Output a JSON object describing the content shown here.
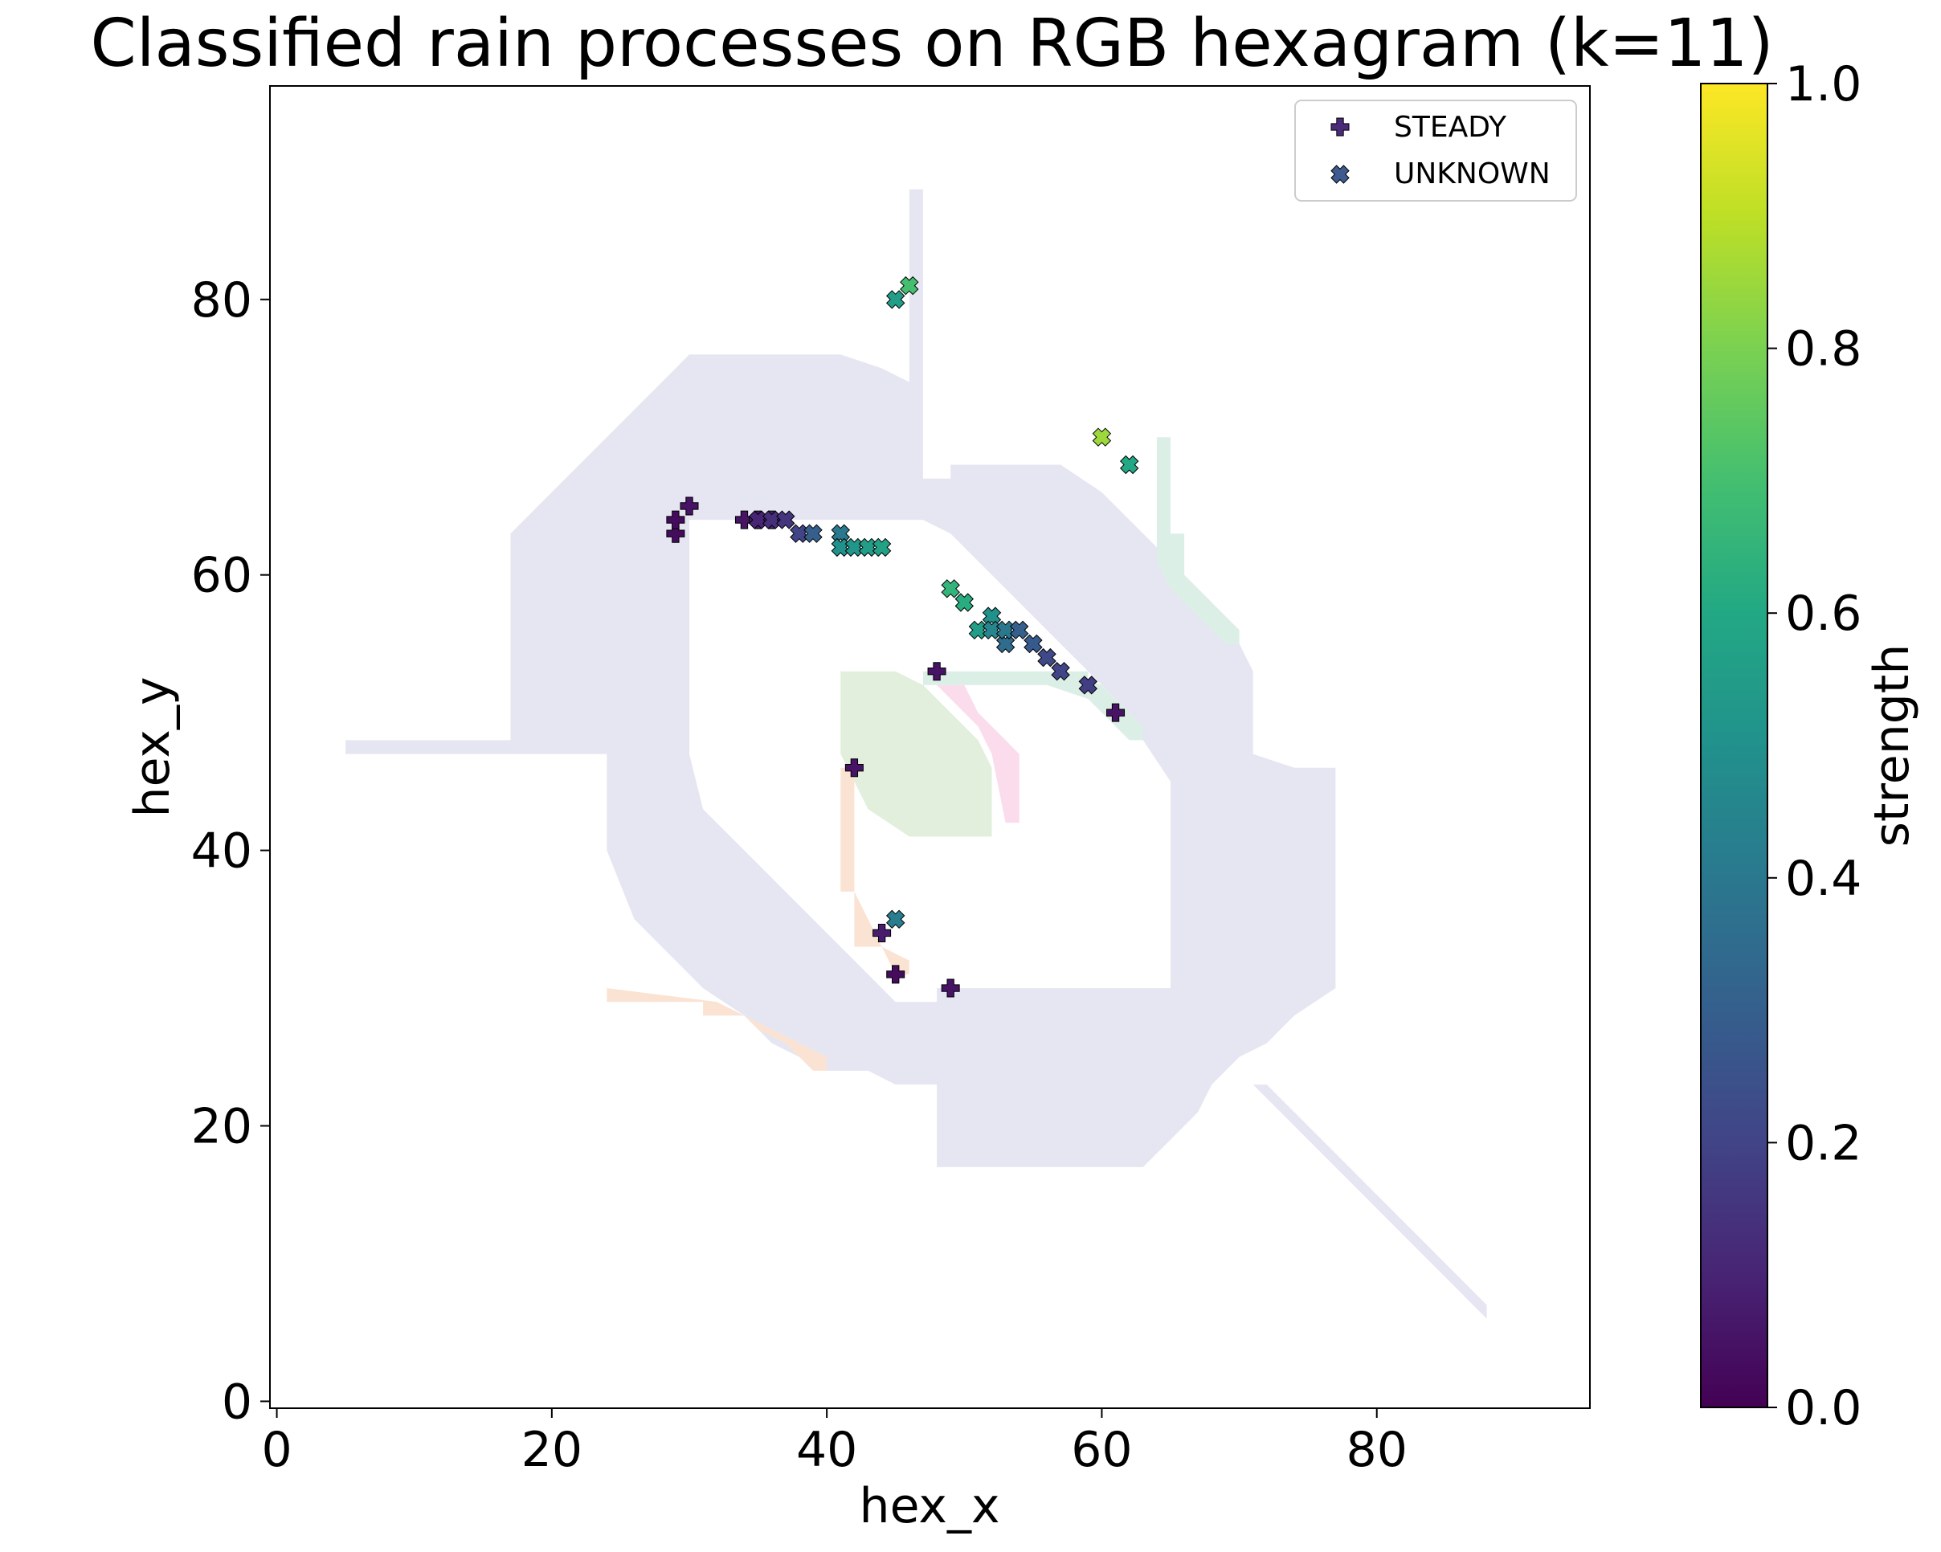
{
  "chart_data": {
    "type": "scatter",
    "title": "Classified rain processes on RGB hexagram (k=11)",
    "xlabel": "hex_x",
    "ylabel": "hex_y",
    "xlim": [
      -0.5,
      95.5
    ],
    "ylim": [
      -0.5,
      95.5
    ],
    "xticks": [
      0,
      20,
      40,
      60,
      80
    ],
    "yticks": [
      0,
      20,
      40,
      60,
      80
    ],
    "grid": false,
    "legend_position": "top-right",
    "colorbar": {
      "label": "strength",
      "range": [
        0,
        1
      ],
      "ticks": [
        "0.0",
        "0.2",
        "0.4",
        "0.6",
        "0.8",
        "1.0"
      ],
      "colormap": "viridis"
    },
    "background_regions": [
      {
        "color": "#e6e6f2",
        "polygons": [
          [
            [
              17,
              47
            ],
            [
              17,
              63
            ],
            [
              20,
              66
            ],
            [
              22,
              68
            ],
            [
              24,
              70
            ],
            [
              26,
              72
            ],
            [
              28,
              74
            ],
            [
              30,
              76
            ],
            [
              41,
              76
            ],
            [
              44,
              75
            ],
            [
              46,
              74
            ],
            [
              46,
              88
            ],
            [
              47,
              88
            ],
            [
              47,
              67
            ],
            [
              49,
              67
            ],
            [
              49,
              68
            ],
            [
              53,
              68
            ],
            [
              55,
              68
            ],
            [
              57,
              68
            ],
            [
              60,
              66
            ],
            [
              62,
              64
            ],
            [
              64,
              62
            ],
            [
              66,
              60
            ],
            [
              68,
              58
            ],
            [
              70,
              55
            ],
            [
              71,
              53
            ],
            [
              71,
              47
            ],
            [
              74,
              46
            ],
            [
              77,
              46
            ],
            [
              77,
              30
            ],
            [
              74,
              28
            ],
            [
              72,
              26
            ],
            [
              70,
              25
            ],
            [
              68,
              23
            ],
            [
              67,
              21
            ],
            [
              65,
              19
            ],
            [
              64,
              18
            ],
            [
              63,
              17
            ],
            [
              48,
              17
            ],
            [
              48,
              23
            ],
            [
              45,
              23
            ],
            [
              43,
              24
            ],
            [
              40,
              24
            ],
            [
              36,
              26
            ],
            [
              34,
              28
            ],
            [
              31,
              30
            ],
            [
              29,
              32
            ],
            [
              26,
              35
            ],
            [
              24,
              40
            ],
            [
              24,
              47
            ]
          ],
          [
            [
              30,
              47
            ],
            [
              30,
              64
            ],
            [
              47,
              64
            ],
            [
              49,
              63
            ],
            [
              51,
              61
            ],
            [
              53,
              59
            ],
            [
              55,
              57
            ],
            [
              57,
              55
            ],
            [
              60,
              52
            ],
            [
              62,
              50
            ],
            [
              63,
              48
            ],
            [
              65,
              45
            ],
            [
              65,
              30
            ],
            [
              48,
              30
            ],
            [
              48,
              29
            ],
            [
              45,
              29
            ],
            [
              44,
              30
            ],
            [
              42,
              32
            ],
            [
              40,
              34
            ],
            [
              37,
              37
            ],
            [
              35,
              39
            ],
            [
              33,
              41
            ],
            [
              31,
              43
            ]
          ]
        ]
      },
      {
        "color": "#e6e6f2",
        "polygons": [
          [
            [
              5,
              47
            ],
            [
              17,
              47
            ],
            [
              17,
              48
            ],
            [
              5,
              48
            ]
          ]
        ]
      },
      {
        "color": "#e6e6f2",
        "polygons": [
          [
            [
              71,
              23
            ],
            [
              88,
              6
            ],
            [
              88,
              7
            ],
            [
              72,
              23
            ]
          ]
        ]
      },
      {
        "color": "#e2efdc",
        "polygons": [
          [
            [
              41,
              53
            ],
            [
              45,
              53
            ],
            [
              47,
              52
            ],
            [
              49,
              50
            ],
            [
              51,
              48
            ],
            [
              52,
              46
            ],
            [
              52,
              41
            ],
            [
              46,
              41
            ],
            [
              43,
              43
            ],
            [
              42,
              45
            ],
            [
              41,
              47
            ]
          ]
        ]
      },
      {
        "color": "#fadcec",
        "polygons": [
          [
            [
              48,
              52
            ],
            [
              50,
              52
            ],
            [
              51,
              50
            ],
            [
              53,
              48
            ],
            [
              54,
              47
            ],
            [
              54,
              42
            ],
            [
              53,
              42
            ],
            [
              52,
              47
            ],
            [
              51,
              49
            ]
          ]
        ]
      },
      {
        "color": "#dcefe6",
        "polygons": [
          [
            [
              47,
              53
            ],
            [
              59,
              53
            ],
            [
              59,
              52
            ],
            [
              47,
              52
            ]
          ]
        ]
      },
      {
        "color": "#dcefe6",
        "polygons": [
          [
            [
              56,
              52
            ],
            [
              59,
              51
            ],
            [
              62,
              48
            ],
            [
              63,
              48
            ],
            [
              63,
              49
            ],
            [
              60,
              52
            ],
            [
              57,
              53
            ]
          ]
        ]
      },
      {
        "color": "#dcefe6",
        "polygons": [
          [
            [
              64,
              70
            ],
            [
              65,
              70
            ],
            [
              65,
              63
            ],
            [
              66,
              63
            ],
            [
              66,
              60
            ],
            [
              68,
              58
            ],
            [
              70,
              56
            ],
            [
              70,
              55
            ],
            [
              69,
              55
            ],
            [
              67,
              57
            ],
            [
              65,
              59
            ],
            [
              64,
              61
            ]
          ]
        ]
      },
      {
        "color": "#fbe3d3",
        "polygons": [
          [
            [
              41,
              46
            ],
            [
              41,
              37
            ],
            [
              42,
              37
            ],
            [
              42,
              33
            ],
            [
              44,
              33
            ],
            [
              45,
              31
            ],
            [
              46,
              31
            ],
            [
              46,
              32
            ],
            [
              44,
              33
            ],
            [
              43,
              35
            ],
            [
              42,
              37
            ],
            [
              42,
              46
            ]
          ]
        ]
      },
      {
        "color": "#fbe3d3",
        "polygons": [
          [
            [
              24,
              29
            ],
            [
              31,
              29
            ],
            [
              31,
              28
            ],
            [
              34,
              28
            ],
            [
              35,
              27
            ],
            [
              37,
              26
            ],
            [
              39,
              24
            ],
            [
              40,
              24
            ],
            [
              40,
              25
            ],
            [
              38,
              26
            ],
            [
              36,
              27
            ],
            [
              34,
              28
            ],
            [
              32,
              29
            ],
            [
              24,
              30
            ]
          ]
        ]
      }
    ],
    "series": [
      {
        "name": "STEADY",
        "marker": "plus",
        "points": [
          {
            "x": 29,
            "y": 63,
            "strength": 0.03
          },
          {
            "x": 29,
            "y": 64,
            "strength": 0.03
          },
          {
            "x": 30,
            "y": 65,
            "strength": 0.05
          },
          {
            "x": 34,
            "y": 64,
            "strength": 0.05
          },
          {
            "x": 35,
            "y": 64,
            "strength": 0.08
          },
          {
            "x": 36,
            "y": 64,
            "strength": 0.1
          },
          {
            "x": 42,
            "y": 46,
            "strength": 0.05
          },
          {
            "x": 48,
            "y": 53,
            "strength": 0.05
          },
          {
            "x": 44,
            "y": 34,
            "strength": 0.08
          },
          {
            "x": 45,
            "y": 31,
            "strength": 0.03
          },
          {
            "x": 49,
            "y": 30,
            "strength": 0.05
          },
          {
            "x": 61,
            "y": 50,
            "strength": 0.05
          }
        ]
      },
      {
        "name": "UNKNOWN",
        "marker": "x",
        "points": [
          {
            "x": 35,
            "y": 64,
            "strength": 0.1
          },
          {
            "x": 36,
            "y": 64,
            "strength": 0.13
          },
          {
            "x": 37,
            "y": 64,
            "strength": 0.15
          },
          {
            "x": 38,
            "y": 63,
            "strength": 0.2
          },
          {
            "x": 39,
            "y": 63,
            "strength": 0.3
          },
          {
            "x": 41,
            "y": 63,
            "strength": 0.4
          },
          {
            "x": 41,
            "y": 62,
            "strength": 0.5
          },
          {
            "x": 42,
            "y": 62,
            "strength": 0.52
          },
          {
            "x": 43,
            "y": 62,
            "strength": 0.55
          },
          {
            "x": 44,
            "y": 62,
            "strength": 0.57
          },
          {
            "x": 45,
            "y": 80,
            "strength": 0.55
          },
          {
            "x": 46,
            "y": 81,
            "strength": 0.7
          },
          {
            "x": 60,
            "y": 70,
            "strength": 0.85
          },
          {
            "x": 62,
            "y": 68,
            "strength": 0.6
          },
          {
            "x": 49,
            "y": 59,
            "strength": 0.65
          },
          {
            "x": 50,
            "y": 58,
            "strength": 0.62
          },
          {
            "x": 51,
            "y": 56,
            "strength": 0.55
          },
          {
            "x": 52,
            "y": 57,
            "strength": 0.5
          },
          {
            "x": 52,
            "y": 56,
            "strength": 0.45
          },
          {
            "x": 53,
            "y": 55,
            "strength": 0.35
          },
          {
            "x": 53,
            "y": 56,
            "strength": 0.4
          },
          {
            "x": 54,
            "y": 56,
            "strength": 0.3
          },
          {
            "x": 55,
            "y": 55,
            "strength": 0.28
          },
          {
            "x": 56,
            "y": 54,
            "strength": 0.22
          },
          {
            "x": 57,
            "y": 53,
            "strength": 0.2
          },
          {
            "x": 59,
            "y": 52,
            "strength": 0.18
          },
          {
            "x": 45,
            "y": 35,
            "strength": 0.42
          }
        ]
      }
    ]
  }
}
